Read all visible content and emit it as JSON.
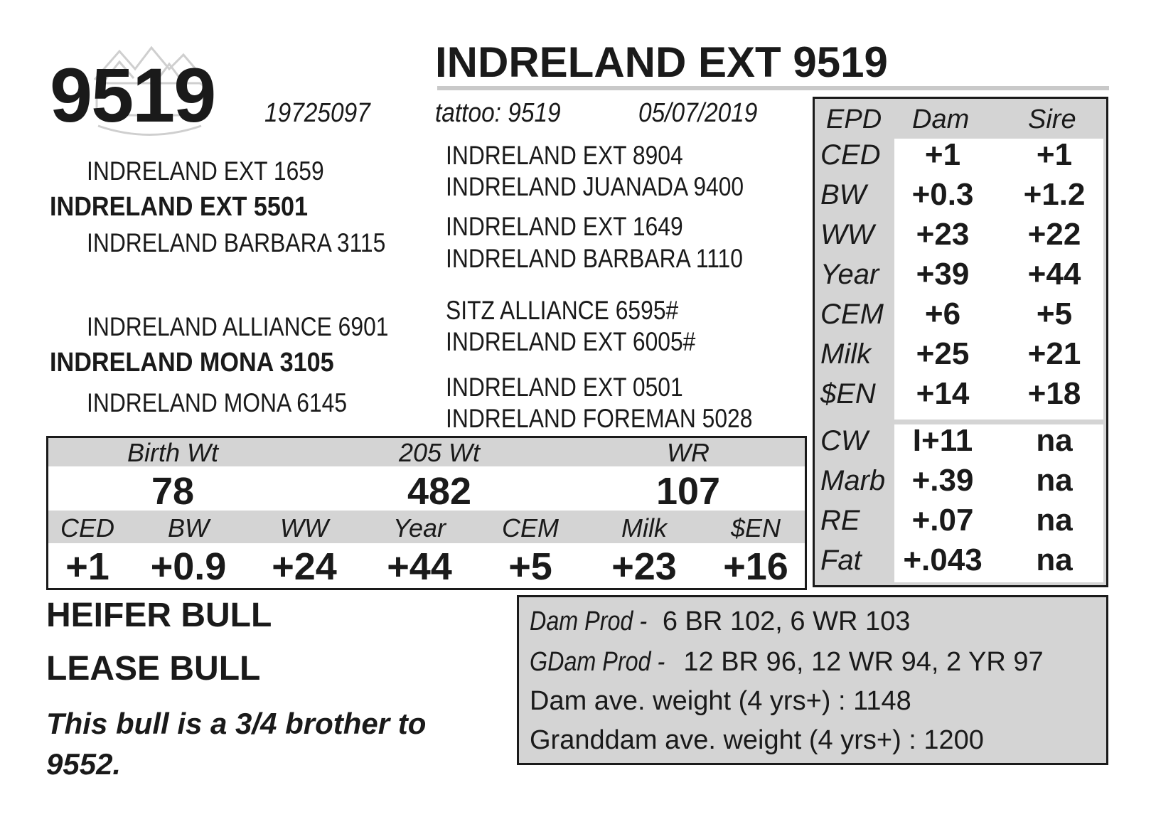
{
  "header": {
    "lot_number": "9519",
    "title": "INDRELAND EXT 9519",
    "registration": "19725097",
    "tattoo": "tattoo: 9519",
    "birth_date": "05/07/2019"
  },
  "logo": {
    "icon": "ranch-mountain-logo-watermark"
  },
  "pedigree": {
    "sire": "INDRELAND EXT 5501",
    "sire_sire": "INDRELAND EXT 1659",
    "sire_dam": "INDRELAND BARBARA 3115",
    "sire_sire_sire": "INDRELAND EXT 8904",
    "sire_sire_dam": "INDRELAND JUANADA 9400",
    "sire_dam_sire": "INDRELAND EXT 1649",
    "sire_dam_dam": "INDRELAND BARBARA 1110",
    "dam": "INDRELAND MONA 3105",
    "dam_sire": "INDRELAND ALLIANCE 6901",
    "dam_dam": "INDRELAND MONA 6145",
    "dam_sire_sire": "SITZ ALLIANCE 6595#",
    "dam_sire_dam": "INDRELAND EXT 6005#",
    "dam_dam_sire": "INDRELAND EXT 0501",
    "dam_dam_dam": "INDRELAND FOREMAN 5028"
  },
  "weights": {
    "labels": [
      "Birth Wt",
      "205 Wt",
      "WR"
    ],
    "values": [
      "78",
      "482",
      "107"
    ]
  },
  "epds": {
    "labels": [
      "CED",
      "BW",
      "WW",
      "Year",
      "CEM",
      "Milk",
      "$EN"
    ],
    "values": [
      "+1",
      "+0.9",
      "+24",
      "+44",
      "+5",
      "+23",
      "+16"
    ]
  },
  "parent_epds": {
    "headers": [
      "EPD",
      "Dam",
      "Sire"
    ],
    "rows": [
      {
        "label": "CED",
        "dam": "+1",
        "sire": "+1"
      },
      {
        "label": "BW",
        "dam": "+0.3",
        "sire": "+1.2"
      },
      {
        "label": "WW",
        "dam": "+23",
        "sire": "+22"
      },
      {
        "label": "Year",
        "dam": "+39",
        "sire": "+44"
      },
      {
        "label": "CEM",
        "dam": "+6",
        "sire": "+5"
      },
      {
        "label": "Milk",
        "dam": "+25",
        "sire": "+21"
      },
      {
        "label": "$EN",
        "dam": "+14",
        "sire": "+18"
      },
      {
        "label": "CW",
        "dam": "I+11",
        "sire": "na"
      },
      {
        "label": "Marb",
        "dam": "+.39",
        "sire": "na"
      },
      {
        "label": "RE",
        "dam": "+.07",
        "sire": "na"
      },
      {
        "label": "Fat",
        "dam": "+.043",
        "sire": "na"
      }
    ]
  },
  "badges": [
    "HEIFER BULL",
    "LEASE BULL"
  ],
  "note": "This bull is a 3/4 brother to 9552.",
  "production": {
    "dam_prod_prefix": "Dam Prod -",
    "dam_prod": "6 BR 102, 6 WR 103",
    "gdam_prod_prefix": "GDam Prod -",
    "gdam_prod": "12 BR 96, 12 WR 94, 2 YR 97",
    "dam_weight": "Dam ave. weight (4 yrs+) : 1148",
    "granddam_weight": "Granddam ave. weight (4 yrs+) : 1200"
  }
}
